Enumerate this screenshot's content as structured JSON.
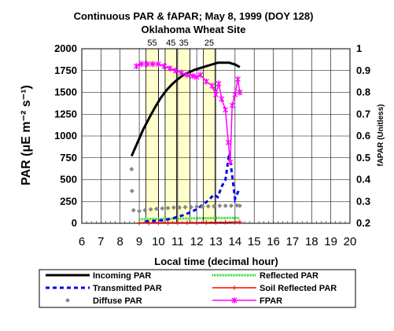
{
  "chart_data": {
    "type": "line",
    "title_line1": "Continuous PAR & fAPAR; May 8, 1999 (DOY 128)",
    "title_line2": "Oklahoma Wheat Site",
    "xlabel": "Local time (decimal hour)",
    "ylabel": "PAR (μE m⁻² s⁻¹)",
    "y2label": "fAPAR (Unitless)",
    "xlim": [
      6,
      20
    ],
    "ylim": [
      0,
      2000
    ],
    "y2lim": [
      0.2,
      1.0
    ],
    "x_ticks": [
      6,
      7,
      8,
      9,
      10,
      11,
      12,
      13,
      14,
      15,
      16,
      17,
      18,
      19,
      20
    ],
    "y_ticks": [
      0,
      250,
      500,
      750,
      1000,
      1250,
      1500,
      1750,
      2000
    ],
    "y2_ticks": [
      "0.2",
      "0.3",
      "0.4",
      "0.5",
      "0.6",
      "0.7",
      "0.8",
      "0.9",
      "1"
    ],
    "grid": true,
    "legend_position": "bottom",
    "shaded_bands": [
      {
        "label": "55",
        "x_start": 9.35,
        "x_end": 10.0
      },
      {
        "label": "45",
        "x_start": 10.35,
        "x_end": 10.95
      },
      {
        "label": "35",
        "x_start": 11.0,
        "x_end": 11.65
      },
      {
        "label": "25",
        "x_start": 12.35,
        "x_end": 12.95
      }
    ],
    "series": [
      {
        "name": "Incoming PAR",
        "axis": "left",
        "color": "#000000",
        "style": "solid-thick",
        "x": [
          8.6,
          8.9,
          9.2,
          9.5,
          9.8,
          10.1,
          10.4,
          10.7,
          11.0,
          11.3,
          11.6,
          11.9,
          12.2,
          12.5,
          12.8,
          13.1,
          13.4,
          13.7,
          14.0,
          14.25
        ],
        "y": [
          770,
          920,
          1070,
          1200,
          1320,
          1430,
          1520,
          1590,
          1650,
          1700,
          1730,
          1760,
          1780,
          1800,
          1820,
          1840,
          1840,
          1840,
          1820,
          1790
        ]
      },
      {
        "name": "Reflected PAR",
        "axis": "left",
        "color": "#00cc00",
        "style": "dotted",
        "x": [
          9.0,
          9.5,
          10.0,
          10.5,
          11.0,
          11.5,
          12.0,
          12.5,
          13.0,
          13.5,
          14.0,
          14.25
        ],
        "y": [
          45,
          48,
          50,
          52,
          53,
          55,
          57,
          58,
          60,
          60,
          60,
          58
        ]
      },
      {
        "name": "Transmitted PAR",
        "axis": "left",
        "color": "#0000ee",
        "style": "dashed",
        "x": [
          9.3,
          9.6,
          9.9,
          10.2,
          10.5,
          10.8,
          11.1,
          11.4,
          11.7,
          12.0,
          12.3,
          12.6,
          12.9,
          13.1,
          13.3,
          13.5,
          13.7,
          13.85,
          14.0,
          14.2
        ],
        "y": [
          20,
          25,
          30,
          35,
          45,
          60,
          80,
          100,
          130,
          160,
          210,
          260,
          330,
          300,
          420,
          500,
          800,
          550,
          280,
          380
        ]
      },
      {
        "name": "Soil Reflected PAR",
        "axis": "left",
        "color": "#ff0000",
        "style": "solid-thin",
        "x": [
          9.0,
          9.5,
          10.0,
          10.5,
          11.0,
          11.5,
          12.0,
          12.5,
          13.0,
          13.5,
          14.0,
          14.25
        ],
        "y": [
          5,
          5,
          6,
          6,
          7,
          7,
          8,
          9,
          10,
          12,
          14,
          15
        ]
      },
      {
        "name": "Diffuse PAR",
        "axis": "left",
        "color": "#888888",
        "style": "markers",
        "x": [
          8.6,
          8.62,
          8.7,
          9.0,
          9.3,
          9.6,
          9.9,
          10.2,
          10.5,
          10.8,
          11.1,
          11.4,
          11.7,
          12.0,
          12.3,
          12.6,
          12.9,
          13.2,
          13.5,
          13.8,
          14.1,
          14.25
        ],
        "y": [
          620,
          370,
          150,
          140,
          150,
          160,
          165,
          170,
          175,
          180,
          180,
          185,
          185,
          190,
          190,
          195,
          195,
          200,
          200,
          200,
          205,
          200
        ]
      },
      {
        "name": "FPAR",
        "axis": "right",
        "color": "#ff00ff",
        "style": "line-x-markers",
        "x": [
          8.85,
          9.1,
          9.4,
          9.7,
          10.0,
          10.3,
          10.6,
          10.9,
          11.2,
          11.5,
          11.8,
          12.0,
          12.2,
          12.5,
          12.8,
          13.0,
          13.15,
          13.3,
          13.5,
          13.65,
          13.75,
          13.85,
          14.0,
          14.15,
          14.25
        ],
        "y": [
          0.92,
          0.93,
          0.93,
          0.93,
          0.93,
          0.92,
          0.91,
          0.9,
          0.89,
          0.88,
          0.875,
          0.87,
          0.88,
          0.85,
          0.83,
          0.79,
          0.84,
          0.77,
          0.72,
          0.57,
          0.48,
          0.74,
          0.79,
          0.86,
          0.8
        ]
      }
    ]
  }
}
